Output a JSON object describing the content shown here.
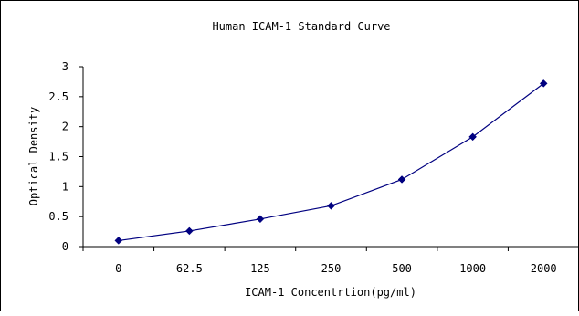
{
  "chart_data": {
    "type": "line",
    "title": "Human ICAM-1 Standard Curve",
    "xlabel": "ICAM-1 Concentrtion(pg/ml)",
    "ylabel": "Optical Density",
    "categories": [
      "0",
      "62.5",
      "125",
      "250",
      "500",
      "1000",
      "2000"
    ],
    "series": [
      {
        "values": [
          0.1,
          0.26,
          0.46,
          0.68,
          1.12,
          1.83,
          2.72
        ]
      }
    ],
    "ylim": [
      0,
      3
    ],
    "yticks": [
      "0",
      "0.5",
      "1",
      "1.5",
      "2",
      "2.5",
      "3"
    ],
    "grid": false,
    "legend": "none",
    "marker": "diamond",
    "colors": {
      "series": "#000080",
      "axes": "#000000",
      "frame": "#000000",
      "background": "#ffffff"
    }
  }
}
